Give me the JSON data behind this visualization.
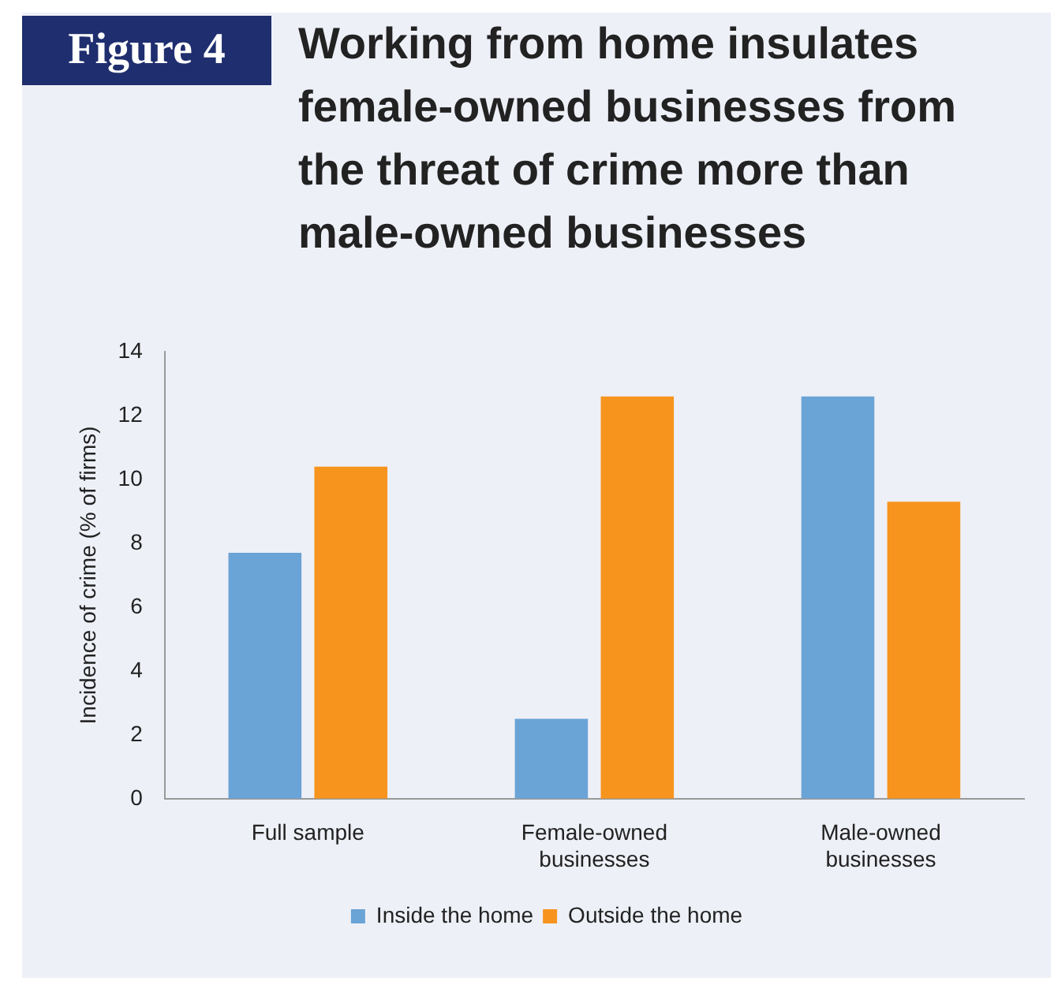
{
  "chart_data": {
    "type": "bar",
    "title": "Working from home insulates female-owned businesses from the threat of crime more than male-owned businesses",
    "annotations": [
      "Figure 4"
    ],
    "ylabel": "Incidence of crime (% of firms)",
    "categories": [
      "Full sample",
      "Female-owned businesses",
      "Male-owned businesses"
    ],
    "series": [
      {
        "name": "Inside the home",
        "color": "#6aa3d6",
        "values": [
          7.7,
          2.5,
          12.6
        ]
      },
      {
        "name": "Outside the home",
        "color": "#f7941e",
        "values": [
          10.4,
          12.6,
          9.3
        ]
      }
    ],
    "ylim": [
      0,
      14
    ],
    "yticks": [
      0,
      2,
      4,
      6,
      8,
      10,
      12,
      14
    ],
    "grid": false,
    "legend": "bottom"
  }
}
